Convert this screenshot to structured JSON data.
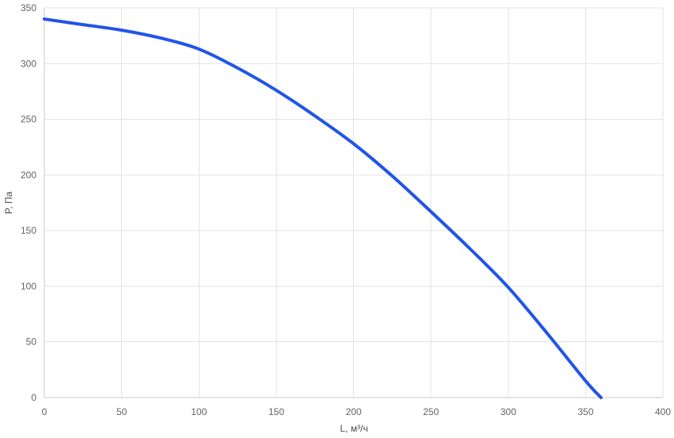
{
  "chart_data": {
    "type": "line",
    "title": "",
    "xlabel": "L, м³/ч",
    "ylabel": "P, Па",
    "xlim": [
      0,
      400
    ],
    "ylim": [
      0,
      350
    ],
    "x_ticks": [
      0,
      50,
      100,
      150,
      200,
      250,
      300,
      350,
      400
    ],
    "y_ticks": [
      0,
      50,
      100,
      150,
      200,
      250,
      300,
      350
    ],
    "grid": true,
    "series": [
      {
        "color": "#2155e8",
        "points": [
          [
            0,
            340
          ],
          [
            25,
            335
          ],
          [
            50,
            330
          ],
          [
            75,
            323
          ],
          [
            100,
            313
          ],
          [
            125,
            296
          ],
          [
            150,
            276
          ],
          [
            175,
            253
          ],
          [
            200,
            228
          ],
          [
            225,
            199
          ],
          [
            250,
            167
          ],
          [
            275,
            134
          ],
          [
            300,
            99
          ],
          [
            325,
            58
          ],
          [
            350,
            15
          ],
          [
            360,
            0
          ]
        ]
      }
    ]
  }
}
